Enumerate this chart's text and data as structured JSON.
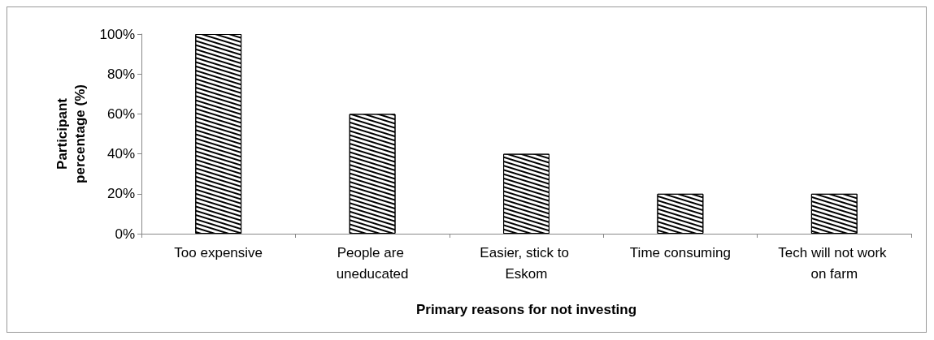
{
  "chart_data": {
    "type": "bar",
    "xlabel": "Primary reasons for not investing",
    "ylabel": "Participant percentage (%)",
    "categories": [
      "Too expensive",
      "People are uneducated",
      "Easier, stick to Eskom",
      "Time consuming",
      "Tech will not work on farm"
    ],
    "values": [
      100,
      60,
      40,
      20,
      20
    ],
    "color": "#000000",
    "ylim": [
      0,
      100
    ],
    "yticks": [
      {
        "value": 0,
        "label": "0%"
      },
      {
        "value": 20,
        "label": "20%"
      },
      {
        "value": 40,
        "label": "40%"
      },
      {
        "value": 60,
        "label": "60%"
      },
      {
        "value": 80,
        "label": "80%"
      },
      {
        "value": 100,
        "label": "100%"
      }
    ],
    "grid": false
  }
}
